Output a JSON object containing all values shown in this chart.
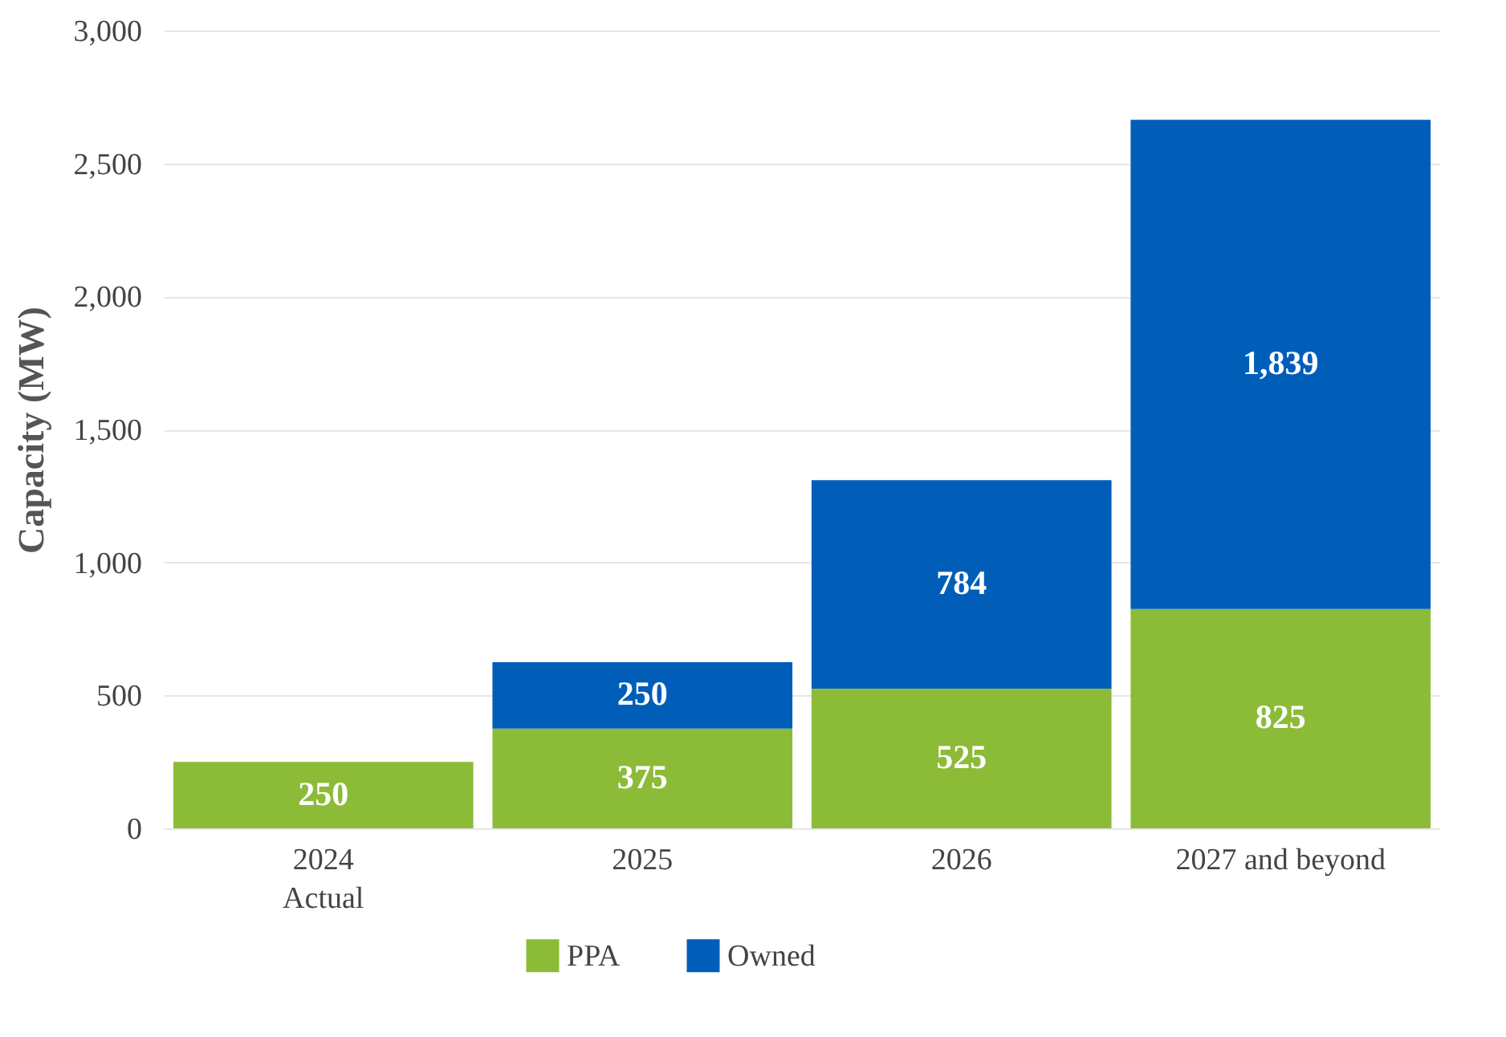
{
  "chart_data": {
    "type": "bar",
    "ylabel": "Capacity (MW)",
    "categories": [
      "2024\nActual",
      "2025",
      "2026",
      "2027 and beyond"
    ],
    "series": [
      {
        "name": "PPA",
        "color": "#8cbb38",
        "values": [
          250,
          375,
          525,
          825
        ],
        "value_labels": [
          "250",
          "375",
          "525",
          "825"
        ]
      },
      {
        "name": "Owned",
        "color": "#005eb8",
        "values": [
          null,
          250,
          784,
          1839
        ],
        "value_labels": [
          null,
          "250",
          "784",
          "1,839"
        ]
      }
    ],
    "stacked": true,
    "ylim": [
      0,
      3000
    ],
    "yticks": [
      {
        "value": 0,
        "label": "0"
      },
      {
        "value": 500,
        "label": "500"
      },
      {
        "value": 1000,
        "label": "1,000"
      },
      {
        "value": 1500,
        "label": "1,500"
      },
      {
        "value": 2000,
        "label": "2,000"
      },
      {
        "value": 2500,
        "label": "2,500"
      },
      {
        "value": 3000,
        "label": "3,000"
      }
    ],
    "grid": "y",
    "legend": "bottom"
  }
}
